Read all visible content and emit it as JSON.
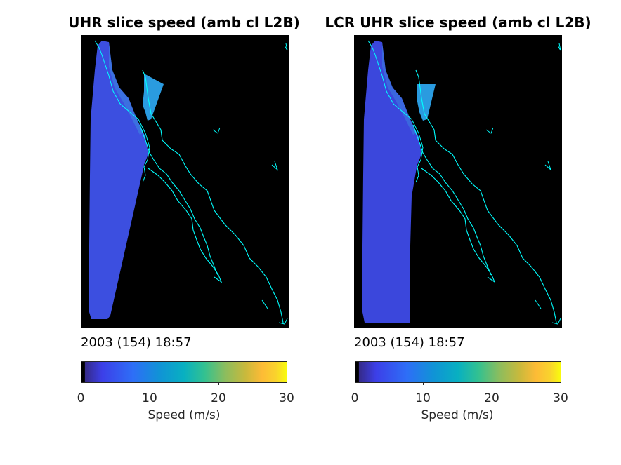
{
  "panels": [
    {
      "title": "UHR slice speed (amb cl L2B)",
      "timestamp": "2003 (154) 18:57",
      "colorbar": {
        "label": "Speed (m/s)",
        "ticks": [
          "0",
          "10",
          "20",
          "30"
        ],
        "range": [
          0,
          30
        ]
      }
    },
    {
      "title": "LCR UHR slice speed (amb cl L2B)",
      "timestamp": "2003 (154) 18:57",
      "colorbar": {
        "label": "Speed (m/s)",
        "ticks": [
          "0",
          "10",
          "20",
          "30"
        ],
        "range": [
          0,
          30
        ]
      }
    }
  ],
  "colors": {
    "background": "#000000",
    "coastline": "#00ffff",
    "swath_primary": "#3c4fe0",
    "swath_gulf": "#2a9be0",
    "colormap": "parula"
  }
}
